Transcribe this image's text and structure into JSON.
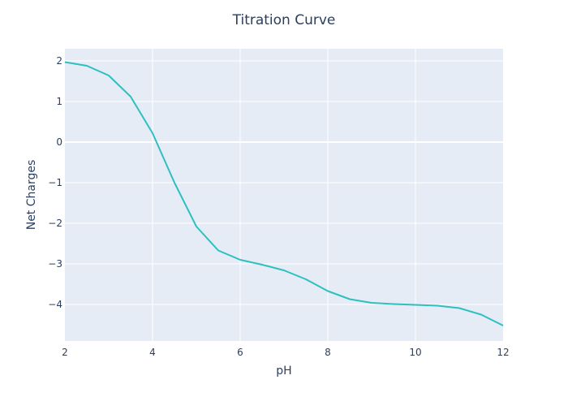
{
  "chart_data": {
    "type": "line",
    "title": "Titration Curve",
    "xlabel": "pH",
    "ylabel": "Net Charges",
    "xlim": [
      2,
      12
    ],
    "ylim": [
      -4.9,
      2.3
    ],
    "x_ticks": [
      2,
      4,
      6,
      8,
      10,
      12
    ],
    "y_ticks": [
      2,
      1,
      0,
      -1,
      -2,
      -3,
      -4
    ],
    "y_tick_labels": [
      "2",
      "1",
      "0",
      "−1",
      "−2",
      "−3",
      "−4"
    ],
    "grid": true,
    "legend": "none",
    "background_color": "#e5ecf6",
    "grid_color": "#ffffff",
    "series": [
      {
        "color": "#2ebfbf",
        "x": [
          2,
          2.5,
          3,
          3.5,
          4,
          4.5,
          5,
          5.5,
          6,
          6.5,
          7,
          7.5,
          8,
          8.5,
          9,
          9.5,
          10,
          10.5,
          11,
          11.5,
          12
        ],
        "y": [
          1.97,
          1.88,
          1.64,
          1.12,
          0.22,
          -1.0,
          -2.08,
          -2.67,
          -2.9,
          -3.02,
          -3.16,
          -3.38,
          -3.67,
          -3.87,
          -3.96,
          -3.99,
          -4.01,
          -4.03,
          -4.09,
          -4.25,
          -4.52
        ]
      }
    ]
  }
}
